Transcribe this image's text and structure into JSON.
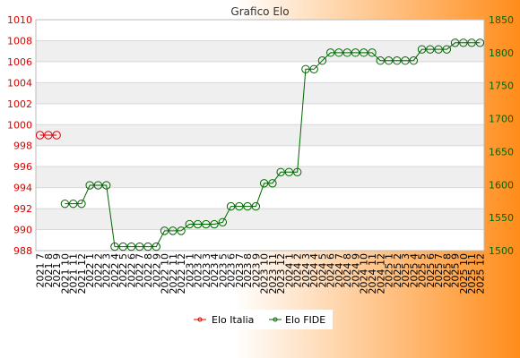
{
  "colors": {
    "bg_left": "#ffffff",
    "bg_right": "#ff8c1a",
    "left_axis": "#dd0000",
    "right_axis": "#006600",
    "series_italia": "#dd0000",
    "series_fide": "#006600",
    "band": "#efefef",
    "grid": "#d8d8d8"
  },
  "chart_data": {
    "type": "line",
    "title": "Grafico Elo",
    "x": [
      "2021 7",
      "2021 8",
      "2021 9",
      "2021 10",
      "2021 11",
      "2021 12",
      "2022 1",
      "2022 2",
      "2022 3",
      "2022 4",
      "2022 5",
      "2022 6",
      "2022 7",
      "2022 8",
      "2022 9",
      "2022 10",
      "2022 11",
      "2022 12",
      "2023 1",
      "2023 2",
      "2023 3",
      "2023 4",
      "2023 5",
      "2023 6",
      "2023 7",
      "2023 8",
      "2023 9",
      "2023 10",
      "2023 11",
      "2023 12",
      "2024 1",
      "2024 2",
      "2024 3",
      "2024 4",
      "2024 5",
      "2024 6",
      "2024 7",
      "2024 8",
      "2024 9",
      "2024 10",
      "2024 11",
      "2024 12",
      "2025 1",
      "2025 2",
      "2025 3",
      "2025 4",
      "2025 5",
      "2025 6",
      "2025 7",
      "2025 8",
      "2025 9",
      "2025 10",
      "2025 11",
      "2025 12"
    ],
    "y_left": {
      "min": 988,
      "max": 1010,
      "ticks": [
        988,
        990,
        992,
        994,
        996,
        998,
        1000,
        1002,
        1004,
        1006,
        1008,
        1010
      ]
    },
    "y_right": {
      "min": 1500,
      "max": 1850,
      "ticks": [
        1500,
        1550,
        1600,
        1650,
        1700,
        1750,
        1800,
        1850
      ]
    },
    "grid": true,
    "legend_position": "bottom",
    "series": [
      {
        "name": "Elo Italia",
        "axis": "left",
        "values": [
          999,
          999,
          999,
          null,
          null,
          null,
          null,
          null,
          null,
          null,
          null,
          null,
          null,
          null,
          null,
          null,
          null,
          null,
          null,
          null,
          null,
          null,
          null,
          null,
          null,
          null,
          null,
          null,
          null,
          null,
          null,
          null,
          null,
          null,
          null,
          null,
          null,
          null,
          null,
          null,
          null,
          null,
          null,
          null,
          null,
          null,
          null,
          null,
          null,
          null,
          null,
          null,
          null,
          null
        ]
      },
      {
        "name": "Elo FIDE",
        "axis": "right",
        "values": [
          null,
          null,
          null,
          1571,
          1571,
          1571,
          1599,
          1599,
          1599,
          1506,
          1506,
          1506,
          1506,
          1506,
          1506,
          1530,
          1530,
          1530,
          1540,
          1540,
          1540,
          1540,
          1543,
          1567,
          1567,
          1567,
          1567,
          1602,
          1602,
          1619,
          1619,
          1619,
          1775,
          1775,
          1788,
          1800,
          1800,
          1800,
          1800,
          1800,
          1800,
          1788,
          1788,
          1788,
          1788,
          1788,
          1805,
          1805,
          1805,
          1805,
          1815,
          1815,
          1815,
          1815
        ]
      }
    ]
  }
}
